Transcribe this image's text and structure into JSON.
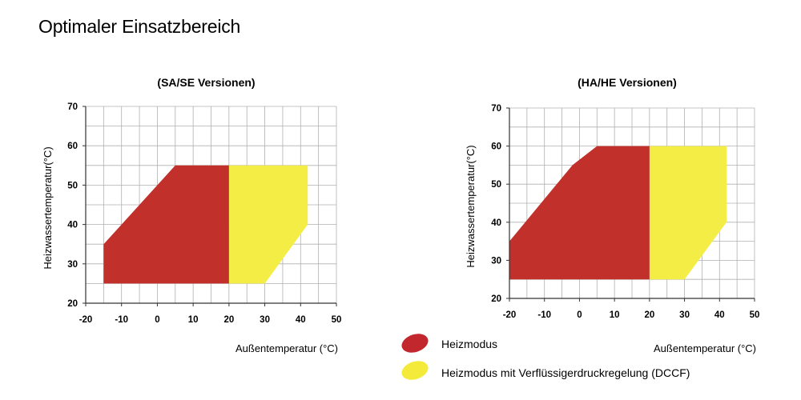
{
  "page": {
    "title": "Optimaler Einsatzbereich"
  },
  "legend": {
    "items": [
      {
        "label": "Heizmodus",
        "color": "#c1272d"
      },
      {
        "label": "Heizmodus mit Verflüssigerdruckregelung (DCCF)",
        "color": "#f4ea3a"
      }
    ]
  },
  "chart_data": [
    {
      "type": "area",
      "title": "(SA/SE Versionen)",
      "xlabel": "Außentemperatur (°C)",
      "ylabel": "Heizwassertemperatur(°C)",
      "xlim": [
        -20,
        50
      ],
      "ylim": [
        20,
        70
      ],
      "x_ticks": [
        "-20",
        "-10",
        "0",
        "10",
        "20",
        "30",
        "40",
        "50"
      ],
      "y_ticks": [
        "20",
        "30",
        "40",
        "50",
        "60",
        "70"
      ],
      "grid": true,
      "regions": [
        {
          "name": "Heizmodus",
          "color": "#c1302a",
          "points": [
            [
              -15,
              25
            ],
            [
              -15,
              35
            ],
            [
              5,
              55
            ],
            [
              20,
              55
            ],
            [
              20,
              25
            ]
          ]
        },
        {
          "name": "Heizmodus mit Verflüssigerdruckregelung (DCCF)",
          "color": "#f4ed45",
          "points": [
            [
              20,
              25
            ],
            [
              20,
              55
            ],
            [
              42,
              55
            ],
            [
              42,
              40
            ],
            [
              30,
              25
            ]
          ]
        }
      ]
    },
    {
      "type": "area",
      "title": "(HA/HE Versionen)",
      "xlabel": "Außentemperatur (°C)",
      "ylabel": "Heizwassertemperatur(°C)",
      "xlim": [
        -20,
        50
      ],
      "ylim": [
        20,
        70
      ],
      "x_ticks": [
        "-20",
        "-10",
        "0",
        "10",
        "20",
        "30",
        "40",
        "50"
      ],
      "y_ticks": [
        "20",
        "30",
        "40",
        "50",
        "60",
        "70"
      ],
      "grid": true,
      "regions": [
        {
          "name": "Heizmodus",
          "color": "#c1302a",
          "points": [
            [
              -20,
              25
            ],
            [
              -20,
              35
            ],
            [
              -2,
              55
            ],
            [
              5,
              60
            ],
            [
              20,
              60
            ],
            [
              20,
              25
            ]
          ]
        },
        {
          "name": "Heizmodus mit Verflüssigerdruckregelung (DCCF)",
          "color": "#f4ed45",
          "points": [
            [
              20,
              25
            ],
            [
              20,
              60
            ],
            [
              42,
              60
            ],
            [
              42,
              40
            ],
            [
              30,
              25
            ]
          ]
        }
      ]
    }
  ]
}
